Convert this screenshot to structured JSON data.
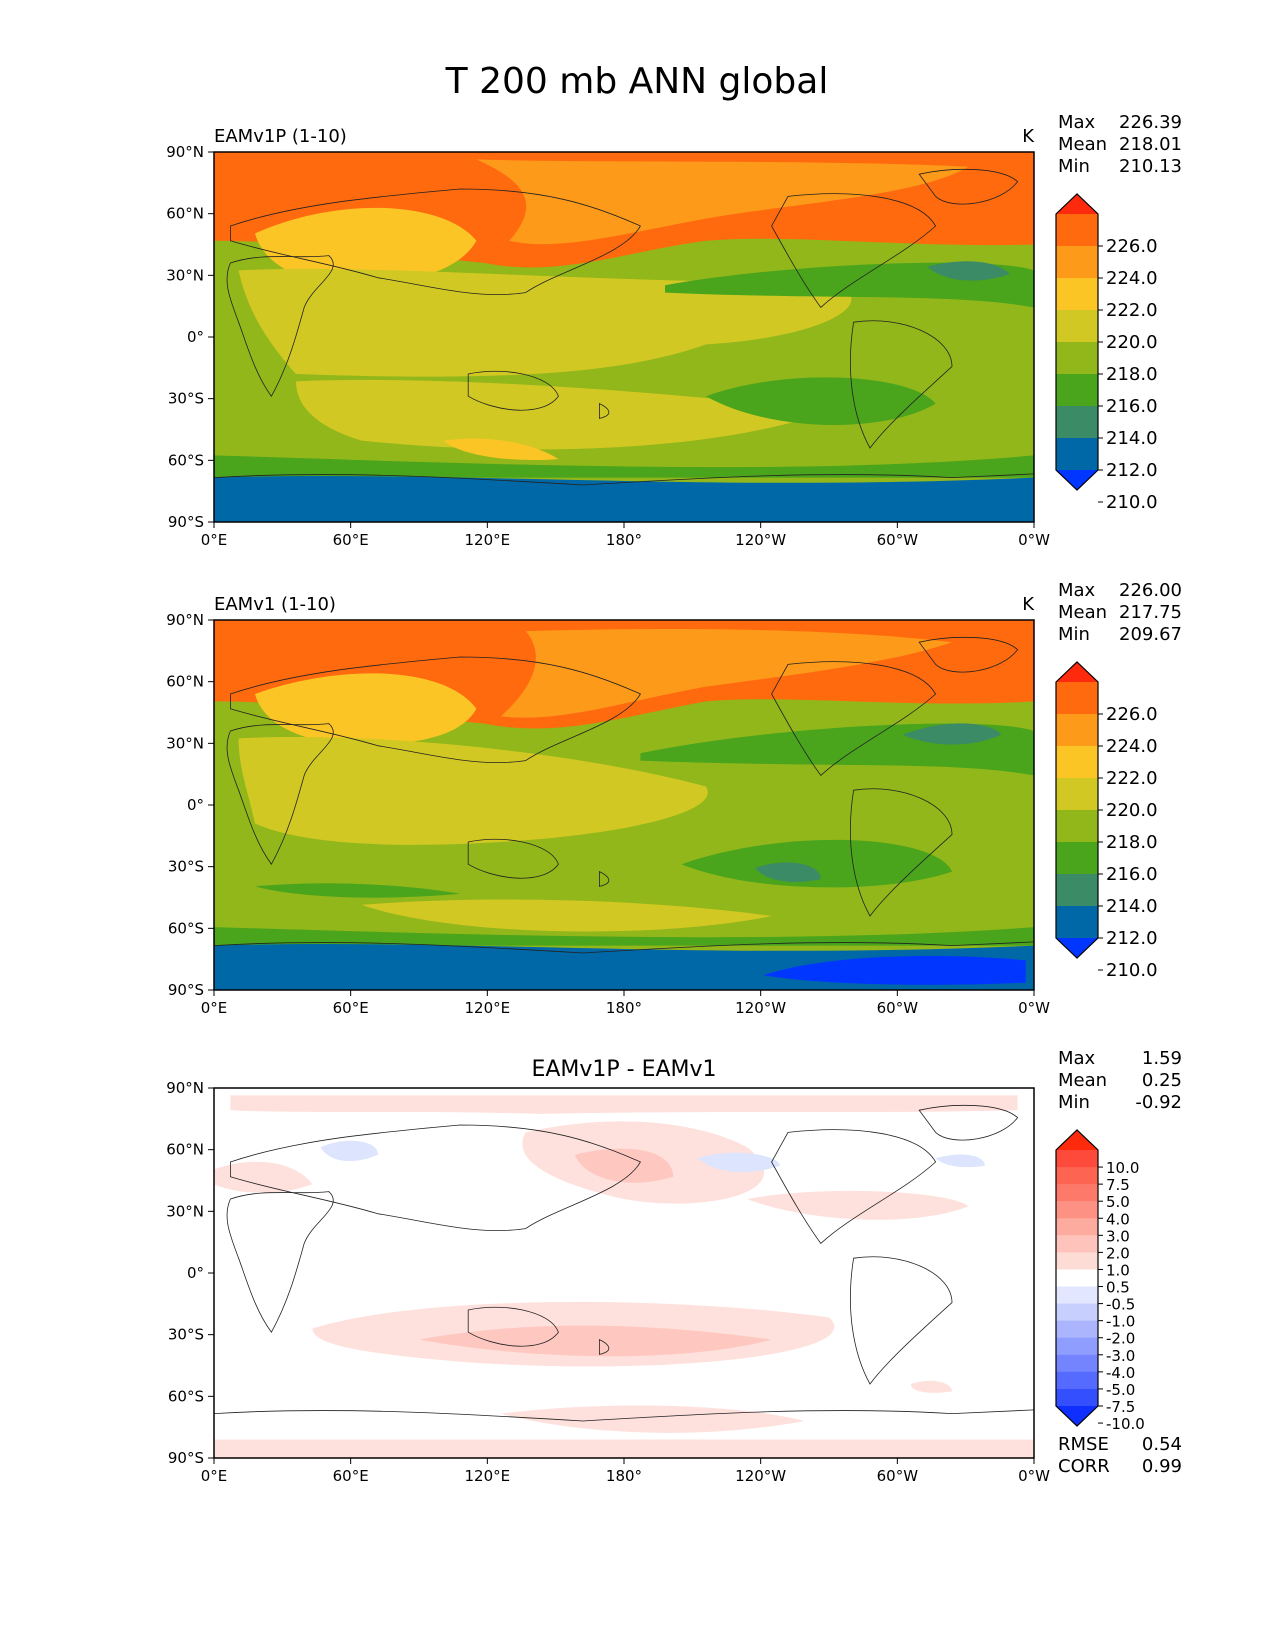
{
  "title": "T 200 mb ANN global",
  "lat_labels": [
    "90°N",
    "60°N",
    "30°N",
    "0°",
    "30°S",
    "60°S",
    "90°S"
  ],
  "lon_labels": [
    "0°E",
    "60°E",
    "120°E",
    "180°",
    "120°W",
    "60°W",
    "0°W"
  ],
  "panels": [
    {
      "id": "test",
      "title_left": "EAMv1P (1-10)",
      "title_center": "",
      "units": "K",
      "stats": [
        {
          "label": "Max",
          "value": "226.39"
        },
        {
          "label": "Mean",
          "value": "218.01"
        },
        {
          "label": "Min",
          "value": "210.13"
        }
      ],
      "colorbar": {
        "labels": [
          "226.0",
          "224.0",
          "222.0",
          "220.0",
          "218.0",
          "216.0",
          "214.0",
          "212.0",
          "210.0"
        ],
        "colors": [
          "#fe2a0e",
          "#ff6a0e",
          "#fe9a19",
          "#fcc526",
          "#d2c824",
          "#91b71a",
          "#4aa41c",
          "#3b8b66",
          "#0068a6",
          "#0036ff"
        ]
      },
      "footer_stats": []
    },
    {
      "id": "ref",
      "title_left": "EAMv1 (1-10)",
      "title_center": "",
      "units": "K",
      "stats": [
        {
          "label": "Max",
          "value": "226.00"
        },
        {
          "label": "Mean",
          "value": "217.75"
        },
        {
          "label": "Min",
          "value": "209.67"
        }
      ],
      "colorbar": {
        "labels": [
          "226.0",
          "224.0",
          "222.0",
          "220.0",
          "218.0",
          "216.0",
          "214.0",
          "212.0",
          "210.0"
        ],
        "colors": [
          "#fe2a0e",
          "#ff6a0e",
          "#fe9a19",
          "#fcc526",
          "#d2c824",
          "#91b71a",
          "#4aa41c",
          "#3b8b66",
          "#0068a6",
          "#0036ff"
        ]
      },
      "footer_stats": []
    },
    {
      "id": "diff",
      "title_left": "",
      "title_center": "EAMv1P - EAMv1",
      "units": "",
      "stats": [
        {
          "label": "Max",
          "value": "1.59"
        },
        {
          "label": "Mean",
          "value": "0.25"
        },
        {
          "label": "Min",
          "value": "-0.92"
        }
      ],
      "colorbar": {
        "labels": [
          "10.0",
          "7.5",
          "5.0",
          "4.0",
          "3.0",
          "2.0",
          "1.0",
          "0.5",
          "-0.5",
          "-1.0",
          "-2.0",
          "-3.0",
          "-4.0",
          "-5.0",
          "-7.5",
          "-10.0"
        ],
        "colors": [
          "#fe2a0e",
          "#fd4a3a",
          "#fd6452",
          "#fd7a6a",
          "#fd9284",
          "#fdab9e",
          "#fec4bc",
          "#fedcd6",
          "#ffffff",
          "#e2e6fe",
          "#c7cffe",
          "#aab5fe",
          "#8f9dfe",
          "#7384fe",
          "#556afe",
          "#3450fe",
          "#0f2ffe"
        ]
      },
      "footer_stats": [
        {
          "label": "RMSE",
          "value": "0.54"
        },
        {
          "label": "CORR",
          "value": "0.99"
        }
      ]
    }
  ],
  "colors": {
    "diff_pos_light": "#fee0dc",
    "diff_pos_mid": "#fec8c0",
    "diff_neg_light": "#dde4fe"
  }
}
